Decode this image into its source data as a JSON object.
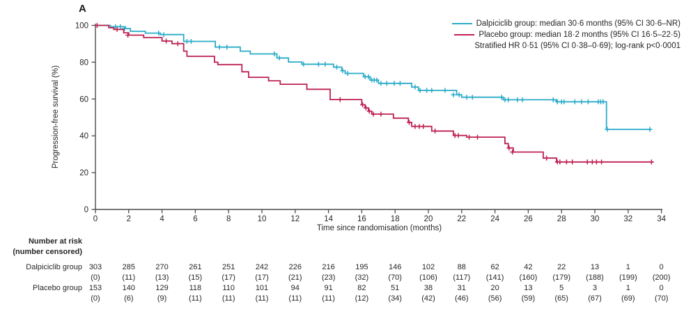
{
  "panel_label": "A",
  "colors": {
    "dalpiciclib": "#29ABC8",
    "placebo": "#BE2051",
    "axis": "#4A4A4A",
    "text": "#262626"
  },
  "legend": {
    "dalpiciclib_label": "Dalpiciclib group: median 30·6 months (95% CI 30·6–NR)",
    "placebo_label": "Placebo group: median 18·2 months (95% CI 16·5–22·5)",
    "stats_line": "Stratified HR 0·51 (95% CI 0·38–0·69); log-rank p<0·0001"
  },
  "axes": {
    "y_label": "Progression-free survival (%)",
    "x_label": "Time since randomisation (months)",
    "y_ticks": [
      0,
      20,
      40,
      60,
      80,
      100
    ],
    "x_ticks": [
      0,
      2,
      4,
      6,
      8,
      10,
      12,
      14,
      16,
      18,
      20,
      22,
      24,
      26,
      28,
      30,
      32,
      34
    ],
    "x_range": [
      0,
      34
    ],
    "y_range": [
      0,
      100
    ],
    "grid": false
  },
  "chart_data": {
    "type": "line",
    "subtype": "kaplan-meier-step",
    "title": "",
    "xlabel": "Time since randomisation (months)",
    "ylabel": "Progression-free survival (%)",
    "xlim": [
      0,
      34
    ],
    "ylim": [
      0,
      100
    ],
    "legend_position": "top-right",
    "series": [
      {
        "name": "Dalpiciclib group",
        "color_key": "dalpiciclib",
        "median_text": "median 30·6 months (95% CI 30·6–NR)",
        "points": [
          [
            0,
            100
          ],
          [
            0.9,
            99.3
          ],
          [
            1.8,
            98.3
          ],
          [
            2.1,
            96.8
          ],
          [
            3.0,
            95.8
          ],
          [
            3.9,
            95.0
          ],
          [
            5.3,
            91.3
          ],
          [
            7.2,
            88.2
          ],
          [
            8.7,
            86.0
          ],
          [
            9.3,
            84.5
          ],
          [
            10.9,
            82.3
          ],
          [
            11.6,
            80.1
          ],
          [
            12.4,
            78.9
          ],
          [
            14.3,
            77.3
          ],
          [
            14.8,
            75.4
          ],
          [
            15.0,
            73.9
          ],
          [
            16.1,
            72.1
          ],
          [
            16.5,
            70.3
          ],
          [
            17.0,
            68.5
          ],
          [
            19.0,
            66.5
          ],
          [
            19.4,
            64.7
          ],
          [
            21.7,
            62.3
          ],
          [
            22.0,
            61.0
          ],
          [
            24.5,
            59.6
          ],
          [
            27.7,
            58.5
          ],
          [
            30.7,
            43.5
          ],
          [
            33.4,
            43.5
          ]
        ],
        "censors": [
          [
            1.2,
            99.3
          ],
          [
            1.5,
            99.3
          ],
          [
            1.75,
            98.3
          ],
          [
            3.8,
            95.8
          ],
          [
            4.1,
            95.0
          ],
          [
            5.5,
            91.3
          ],
          [
            5.75,
            91.3
          ],
          [
            7.45,
            88.2
          ],
          [
            7.9,
            88.2
          ],
          [
            10.75,
            84.5
          ],
          [
            11.05,
            82.3
          ],
          [
            12.5,
            78.9
          ],
          [
            13.4,
            78.9
          ],
          [
            13.8,
            78.9
          ],
          [
            14.5,
            77.3
          ],
          [
            14.85,
            75.4
          ],
          [
            15.15,
            73.9
          ],
          [
            16.2,
            72.1
          ],
          [
            16.4,
            72.1
          ],
          [
            16.6,
            70.3
          ],
          [
            16.75,
            70.3
          ],
          [
            16.9,
            70.3
          ],
          [
            17.15,
            68.5
          ],
          [
            17.5,
            68.5
          ],
          [
            17.95,
            68.5
          ],
          [
            18.3,
            68.5
          ],
          [
            19.2,
            66.5
          ],
          [
            19.5,
            64.7
          ],
          [
            19.9,
            64.7
          ],
          [
            20.2,
            64.7
          ],
          [
            21.0,
            64.7
          ],
          [
            21.5,
            62.3
          ],
          [
            21.85,
            62.3
          ],
          [
            22.3,
            61.0
          ],
          [
            22.65,
            61.0
          ],
          [
            24.4,
            61.0
          ],
          [
            24.6,
            59.6
          ],
          [
            24.8,
            59.6
          ],
          [
            25.35,
            59.6
          ],
          [
            25.65,
            59.6
          ],
          [
            27.5,
            59.6
          ],
          [
            27.75,
            58.5
          ],
          [
            28.0,
            58.5
          ],
          [
            28.15,
            58.5
          ],
          [
            28.8,
            58.5
          ],
          [
            29.2,
            58.5
          ],
          [
            29.6,
            58.5
          ],
          [
            30.2,
            58.5
          ],
          [
            30.35,
            58.5
          ],
          [
            30.5,
            58.5
          ],
          [
            30.75,
            43.5
          ],
          [
            33.3,
            43.5
          ]
        ]
      },
      {
        "name": "Placebo group",
        "color_key": "placebo",
        "median_text": "median 18·2 months (95% CI 16·5–22·5)",
        "points": [
          [
            0,
            100
          ],
          [
            0.8,
            98.7
          ],
          [
            1.1,
            97.8
          ],
          [
            1.7,
            96.0
          ],
          [
            2.0,
            94.7
          ],
          [
            2.9,
            93.4
          ],
          [
            4.0,
            91.5
          ],
          [
            4.6,
            90.1
          ],
          [
            5.3,
            86.0
          ],
          [
            5.5,
            83.2
          ],
          [
            7.15,
            80.0
          ],
          [
            7.35,
            78.7
          ],
          [
            8.8,
            74.8
          ],
          [
            9.2,
            71.8
          ],
          [
            10.4,
            69.9
          ],
          [
            11.1,
            68.0
          ],
          [
            12.7,
            65.3
          ],
          [
            14.1,
            59.7
          ],
          [
            16.0,
            56.9
          ],
          [
            16.2,
            55.2
          ],
          [
            16.4,
            53.4
          ],
          [
            16.6,
            51.8
          ],
          [
            17.9,
            49.6
          ],
          [
            18.8,
            47.3
          ],
          [
            19.0,
            45.1
          ],
          [
            20.2,
            42.6
          ],
          [
            21.5,
            40.2
          ],
          [
            22.3,
            39.3
          ],
          [
            24.6,
            35.8
          ],
          [
            24.8,
            33.4
          ],
          [
            25.1,
            31.2
          ],
          [
            26.9,
            27.9
          ],
          [
            27.7,
            25.8
          ],
          [
            33.5,
            25.8
          ]
        ],
        "censors": [
          [
            0.1,
            100
          ],
          [
            1.3,
            97.8
          ],
          [
            1.95,
            94.7
          ],
          [
            4.25,
            91.5
          ],
          [
            4.95,
            90.1
          ],
          [
            14.7,
            59.7
          ],
          [
            16.05,
            56.9
          ],
          [
            16.25,
            55.2
          ],
          [
            16.45,
            53.4
          ],
          [
            16.7,
            51.8
          ],
          [
            17.15,
            51.8
          ],
          [
            18.85,
            47.3
          ],
          [
            19.2,
            45.1
          ],
          [
            19.45,
            45.1
          ],
          [
            19.7,
            45.1
          ],
          [
            20.4,
            42.6
          ],
          [
            21.6,
            40.2
          ],
          [
            21.8,
            40.2
          ],
          [
            22.45,
            39.3
          ],
          [
            22.95,
            39.3
          ],
          [
            24.85,
            33.4
          ],
          [
            25.05,
            31.2
          ],
          [
            27.1,
            27.9
          ],
          [
            27.75,
            25.8
          ],
          [
            27.9,
            25.8
          ],
          [
            28.3,
            25.8
          ],
          [
            28.65,
            25.8
          ],
          [
            29.55,
            25.8
          ],
          [
            29.85,
            25.8
          ],
          [
            30.1,
            25.8
          ],
          [
            30.4,
            25.8
          ],
          [
            33.4,
            25.8
          ]
        ]
      }
    ],
    "stats_annotation": "Stratified HR 0·51 (95% CI 0·38–0·69); log-rank p<0·0001"
  },
  "risk_table": {
    "header_line1": "Number at risk",
    "header_line2": "(number censored)",
    "time_points": [
      0,
      2,
      4,
      6,
      8,
      10,
      12,
      14,
      16,
      18,
      20,
      22,
      24,
      26,
      28,
      30,
      32,
      34
    ],
    "rows": [
      {
        "label": "Dalpiciclib group",
        "at_risk": [
          "303",
          "285",
          "270",
          "261",
          "251",
          "242",
          "226",
          "216",
          "195",
          "146",
          "102",
          "88",
          "62",
          "42",
          "22",
          "13",
          "1",
          "0"
        ],
        "censored": [
          "(0)",
          "(11)",
          "(13)",
          "(15)",
          "(17)",
          "(17)",
          "(21)",
          "(23)",
          "(32)",
          "(70)",
          "(106)",
          "(117)",
          "(141)",
          "(160)",
          "(179)",
          "(188)",
          "(199)",
          "(200)"
        ]
      },
      {
        "label": "Placebo group",
        "at_risk": [
          "153",
          "140",
          "129",
          "118",
          "110",
          "101",
          "94",
          "91",
          "82",
          "51",
          "38",
          "31",
          "20",
          "13",
          "5",
          "3",
          "1",
          "0"
        ],
        "censored": [
          "(0)",
          "(6)",
          "(9)",
          "(11)",
          "(11)",
          "(11)",
          "(11)",
          "(11)",
          "(12)",
          "(34)",
          "(42)",
          "(46)",
          "(56)",
          "(59)",
          "(65)",
          "(67)",
          "(69)",
          "(70)"
        ]
      }
    ]
  }
}
